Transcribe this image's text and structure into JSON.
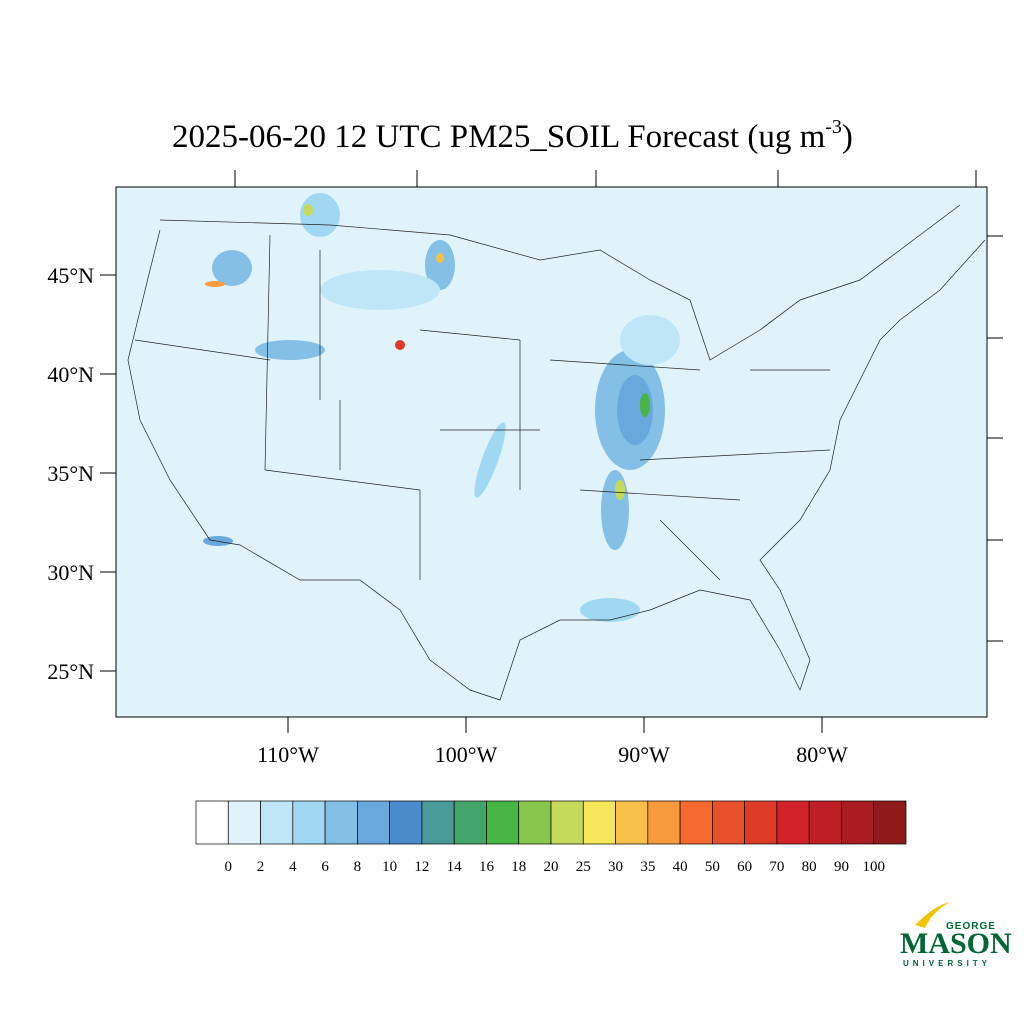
{
  "map": {
    "title": {
      "main": "2025-06-20 12 UTC PM25_SOIL Forecast (ug m",
      "superscript": "-3",
      "end": ")"
    },
    "lat_ticks": [
      {
        "value": 45,
        "label": "45°N"
      },
      {
        "value": 40,
        "label": "40°N"
      },
      {
        "value": 35,
        "label": "35°N"
      },
      {
        "value": 30,
        "label": "30°N"
      },
      {
        "value": 25,
        "label": "25°N"
      }
    ],
    "lon_ticks": [
      {
        "value": -110,
        "label": "110°W"
      },
      {
        "value": -100,
        "label": "100°W"
      },
      {
        "value": -90,
        "label": "90°W"
      },
      {
        "value": -80,
        "label": "80°W"
      }
    ],
    "colorbar": {
      "labels": [
        "0",
        "2",
        "4",
        "6",
        "8",
        "10",
        "12",
        "14",
        "16",
        "18",
        "20",
        "25",
        "30",
        "35",
        "40",
        "50",
        "60",
        "70",
        "80",
        "90",
        "100"
      ],
      "colors": [
        "#ffffff",
        "#e0f3fb",
        "#bfe6f7",
        "#a0d8f3",
        "#84bfe6",
        "#68a8dc",
        "#4a8ccb",
        "#4a9a9a",
        "#44a56a",
        "#46b544",
        "#86c64a",
        "#c5d95a",
        "#f8e65a",
        "#f8c048",
        "#f69a3c",
        "#f46a2e",
        "#e9512c",
        "#de3a28",
        "#d2232a",
        "#c01e26",
        "#a81c22",
        "#8f1a1c"
      ]
    },
    "logo": {
      "top": "GEORGE",
      "main": "MASON",
      "bottom": "UNIVERSITY"
    }
  }
}
